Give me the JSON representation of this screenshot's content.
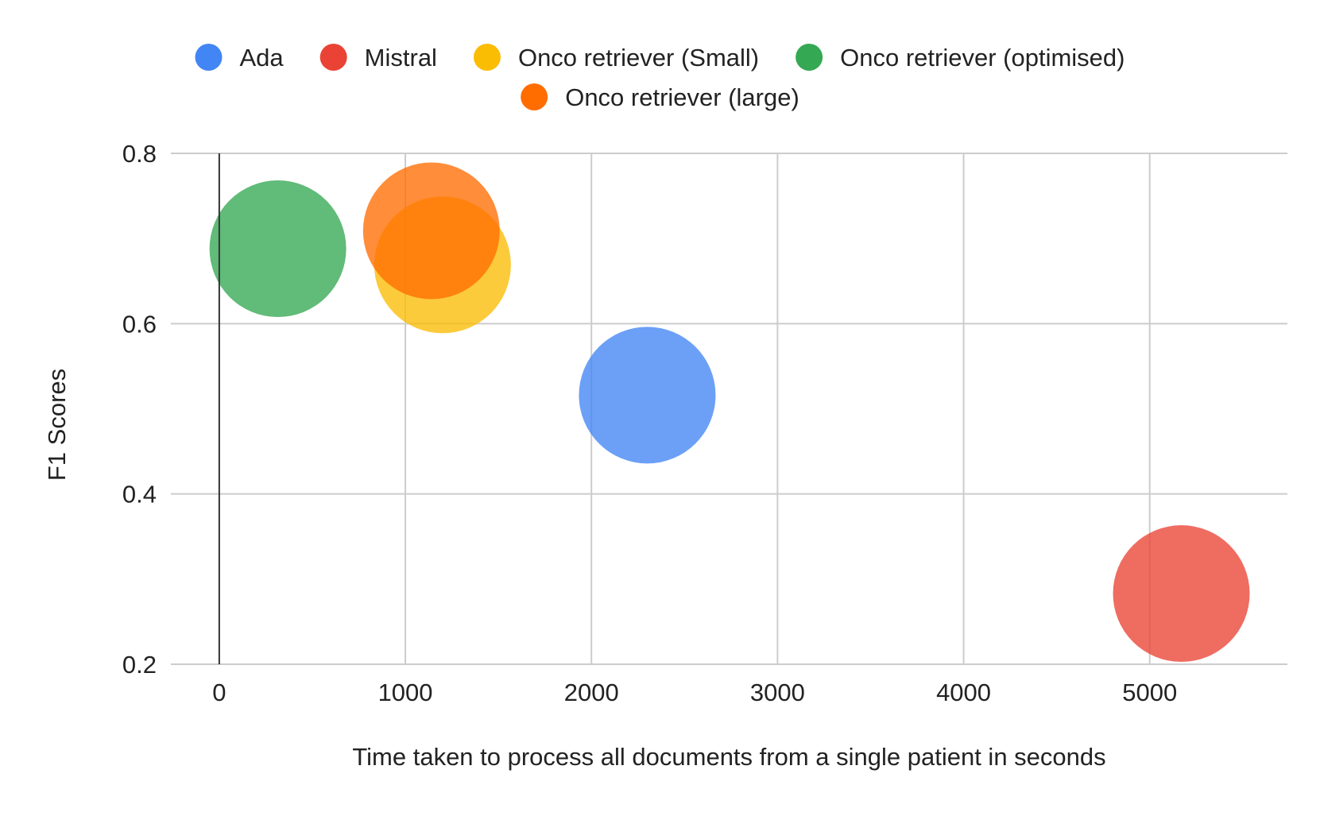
{
  "chart_data": {
    "type": "bubble",
    "title": "",
    "xlabel": "Time taken to process all documents from a single patient in seconds",
    "ylabel": "F1 Scores",
    "xlim": [
      -260,
      5740
    ],
    "ylim": [
      0.2,
      0.8
    ],
    "xticks": [
      0,
      1000,
      2000,
      3000,
      4000,
      5000
    ],
    "yticks": [
      0.2,
      0.4,
      0.6,
      0.8
    ],
    "grid": true,
    "legend_position": "top",
    "series": [
      {
        "name": "Ada",
        "color": "#4285f4",
        "x": 2300,
        "y": 0.516
      },
      {
        "name": "Mistral",
        "color": "#ea4335",
        "x": 5170,
        "y": 0.283
      },
      {
        "name": "Onco retriever (Small)",
        "color": "#fbbc04",
        "x": 1200,
        "y": 0.669
      },
      {
        "name": "Onco retriever (optimised)",
        "color": "#34a853",
        "x": 315,
        "y": 0.688
      },
      {
        "name": "Onco retriever (large)",
        "color": "#ff6d01",
        "x": 1140,
        "y": 0.709
      }
    ]
  }
}
